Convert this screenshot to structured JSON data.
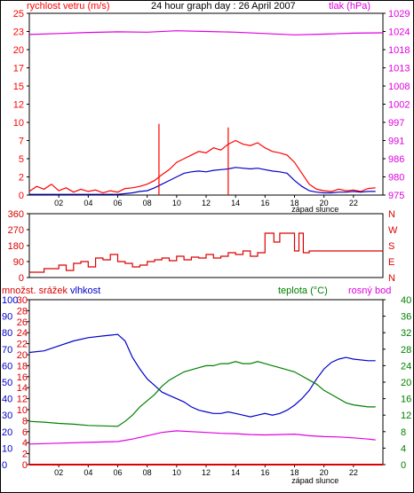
{
  "colors": {
    "wind": "#ff0000",
    "gust": "#ff0000",
    "wind_avg": "#0000c8",
    "pressure": "#e000e0",
    "direction": "#dd0000",
    "humidity": "#0000cc",
    "temperature": "#008000",
    "dewpoint": "#e000e0",
    "rain": "#dd0000",
    "axis": "#000000"
  },
  "chart_data": [
    {
      "type": "line",
      "title": "24 hour graph day : 26 April 2007",
      "ylabel_left": "rychlost vetru (m/s)",
      "ylabel_right": "tlak (hPa)",
      "sunset_label": "západ slunce",
      "x_ticks": [
        "02",
        "04",
        "06",
        "08",
        "10",
        "12",
        "14",
        "16",
        "18",
        "20",
        "22"
      ],
      "x_range": [
        0,
        24
      ],
      "yticks_left": [
        "0",
        "2",
        "5",
        "7",
        "10",
        "12",
        "15",
        "17",
        "20",
        "23",
        "25"
      ],
      "ylim_left": [
        0,
        25
      ],
      "yticks_right": [
        "975",
        "980",
        "986",
        "991",
        "997",
        "1002",
        "1008",
        "1013",
        "1018",
        "1024",
        "1029"
      ],
      "ylim_right": [
        975,
        1029
      ],
      "series": [
        {
          "name": "wind_gust",
          "color": "wind",
          "x": [
            0,
            0.5,
            1,
            1.5,
            2,
            2.5,
            3,
            3.5,
            4,
            4.5,
            5,
            5.5,
            6,
            6.5,
            7,
            7.5,
            8,
            8.5,
            9,
            9.5,
            10,
            10.5,
            11,
            11.5,
            12,
            12.5,
            13,
            13.5,
            14,
            14.5,
            15,
            15.5,
            16,
            16.5,
            17,
            17.5,
            18,
            18.5,
            19,
            19.5,
            20,
            20.5,
            21,
            21.5,
            22,
            22.5,
            23,
            23.5
          ],
          "y": [
            0.5,
            1.2,
            0.8,
            1.5,
            0.6,
            1.0,
            0.4,
            0.8,
            0.5,
            0.7,
            0.3,
            0.6,
            0.4,
            0.9,
            1.0,
            1.2,
            1.5,
            2.0,
            2.8,
            3.5,
            4.5,
            5.0,
            5.5,
            6.0,
            5.8,
            6.5,
            6.2,
            7.0,
            7.5,
            7.0,
            6.8,
            7.2,
            6.5,
            6.0,
            5.8,
            5.5,
            4.5,
            3.0,
            1.5,
            0.8,
            0.6,
            0.5,
            0.8,
            0.6,
            0.7,
            0.5,
            0.9,
            1.0
          ]
        },
        {
          "name": "wind_avg",
          "color": "wind_avg",
          "x": [
            0,
            0.5,
            1,
            1.5,
            2,
            2.5,
            3,
            3.5,
            4,
            4.5,
            5,
            5.5,
            6,
            6.5,
            7,
            7.5,
            8,
            8.5,
            9,
            9.5,
            10,
            10.5,
            11,
            11.5,
            12,
            12.5,
            13,
            13.5,
            14,
            14.5,
            15,
            15.5,
            16,
            16.5,
            17,
            17.5,
            18,
            18.5,
            19,
            19.5,
            20,
            20.5,
            21,
            21.5,
            22,
            22.5,
            23,
            23.5
          ],
          "y": [
            0.1,
            0.1,
            0.1,
            0.1,
            0.1,
            0.1,
            0.1,
            0.1,
            0.1,
            0.1,
            0.1,
            0.1,
            0.1,
            0.2,
            0.3,
            0.5,
            0.6,
            1.0,
            1.5,
            2.0,
            2.5,
            3.0,
            3.2,
            3.3,
            3.2,
            3.4,
            3.5,
            3.6,
            3.8,
            3.7,
            3.6,
            3.7,
            3.5,
            3.3,
            3.2,
            3.0,
            2.0,
            1.2,
            0.6,
            0.4,
            0.3,
            0.3,
            0.4,
            0.4,
            0.5,
            0.4,
            0.5,
            0.5
          ]
        },
        {
          "name": "pressure",
          "color": "pressure",
          "axis": "right",
          "x": [
            0,
            2,
            4,
            6,
            8,
            10,
            12,
            14,
            16,
            18,
            20,
            22,
            24
          ],
          "y": [
            1022.7,
            1023.0,
            1023.3,
            1023.5,
            1023.4,
            1023.8,
            1023.6,
            1023.4,
            1023.0,
            1022.6,
            1022.8,
            1023.1,
            1023.2
          ]
        }
      ],
      "spikes": [
        {
          "x": 8.8,
          "y": 9.8
        },
        {
          "x": 13.5,
          "y": 9.3
        }
      ]
    },
    {
      "type": "step",
      "ylabel_left_ticks": [
        "360",
        "270",
        "180",
        "90",
        "0"
      ],
      "ylim": [
        0,
        360
      ],
      "compass_right": [
        "N",
        "W",
        "S",
        "E",
        "N"
      ],
      "x_range": [
        0,
        24
      ],
      "series": [
        {
          "name": "direction",
          "color": "direction",
          "x": [
            0,
            1,
            2,
            2.5,
            3,
            3.5,
            4,
            4.5,
            5,
            5.5,
            6,
            6.5,
            7,
            7.5,
            8,
            8.5,
            9,
            9.5,
            10,
            10.5,
            11,
            11.5,
            12,
            12.5,
            13,
            13.5,
            14,
            14.5,
            15,
            15.5,
            16,
            16.3,
            16.6,
            17,
            17.5,
            18,
            18.3,
            18.6,
            19,
            24
          ],
          "y": [
            30,
            50,
            70,
            40,
            80,
            90,
            60,
            110,
            100,
            130,
            90,
            80,
            60,
            70,
            90,
            100,
            110,
            95,
            120,
            100,
            115,
            110,
            130,
            110,
            120,
            140,
            130,
            150,
            120,
            140,
            250,
            250,
            200,
            250,
            250,
            150,
            250,
            140,
            150,
            150
          ]
        }
      ]
    },
    {
      "type": "line",
      "ylabel_left": "množst. srážek",
      "ylabel_left2": "vlhkost",
      "ylabel_right": "teplota (°C)",
      "ylabel_right2": "rosný bod",
      "sunset_label": "západ slunce",
      "x_ticks": [
        "02",
        "04",
        "06",
        "08",
        "10",
        "12",
        "14",
        "16",
        "18",
        "20",
        "22"
      ],
      "x_range": [
        0,
        24
      ],
      "yticks_rain": [
        "0",
        "2",
        "4",
        "6",
        "8",
        "10",
        "12",
        "14",
        "16",
        "18",
        "20",
        "22",
        "24",
        "26",
        "28",
        "30"
      ],
      "ylim_rain": [
        0,
        30
      ],
      "yticks_humidity": [
        "0",
        "10",
        "20",
        "30",
        "40",
        "50",
        "60",
        "70",
        "80",
        "90",
        "100"
      ],
      "ylim_humidity": [
        0,
        100
      ],
      "yticks_temp": [
        "0",
        "4",
        "8",
        "12",
        "16",
        "20",
        "24",
        "28",
        "32",
        "36",
        "40"
      ],
      "ylim_temp": [
        0,
        40
      ],
      "series": [
        {
          "name": "humidity",
          "color": "humidity",
          "axis": "humidity",
          "x": [
            0,
            1,
            2,
            3,
            4,
            5,
            6,
            6.5,
            7,
            7.5,
            8,
            8.5,
            9,
            9.5,
            10,
            10.5,
            11,
            11.5,
            12,
            12.5,
            13,
            13.5,
            14,
            14.5,
            15,
            15.5,
            16,
            16.5,
            17,
            17.5,
            18,
            18.5,
            19,
            19.5,
            20,
            20.5,
            21,
            21.5,
            22,
            23,
            23.5
          ],
          "y": [
            68,
            69,
            72,
            75,
            77,
            78,
            79,
            75,
            65,
            58,
            52,
            48,
            44,
            42,
            40,
            38,
            35,
            33,
            32,
            31,
            31,
            32,
            31,
            30,
            29,
            30,
            31,
            30,
            31,
            33,
            36,
            40,
            45,
            52,
            58,
            62,
            64,
            65,
            64,
            63,
            63
          ]
        },
        {
          "name": "temperature",
          "color": "temperature",
          "axis": "temp",
          "x": [
            0,
            1,
            2,
            3,
            4,
            5,
            6,
            6.5,
            7,
            7.5,
            8,
            8.5,
            9,
            9.5,
            10,
            10.5,
            11,
            11.5,
            12,
            12.5,
            13,
            13.5,
            14,
            14.5,
            15,
            15.5,
            16,
            16.5,
            17,
            17.5,
            18,
            18.5,
            19,
            19.5,
            20,
            20.5,
            21,
            21.5,
            22,
            23,
            23.5
          ],
          "y": [
            10.5,
            10.3,
            10.0,
            9.8,
            9.5,
            9.4,
            9.3,
            10.5,
            12.0,
            14.0,
            15.5,
            17.0,
            19.0,
            20.5,
            21.5,
            22.5,
            23.0,
            23.5,
            24.0,
            24.0,
            24.5,
            24.5,
            25.0,
            24.5,
            24.5,
            25.0,
            24.5,
            24.0,
            23.5,
            23.0,
            22.5,
            21.5,
            20.5,
            19.5,
            18.0,
            17.0,
            16.0,
            15.0,
            14.5,
            14.0,
            14.0
          ]
        },
        {
          "name": "dewpoint",
          "color": "dewpoint",
          "axis": "temp",
          "x": [
            0,
            2,
            4,
            6,
            7,
            8,
            9,
            10,
            11,
            12,
            13,
            14,
            15,
            16,
            17,
            18,
            19,
            20,
            21,
            22,
            23,
            23.5
          ],
          "y": [
            5.0,
            5.2,
            5.4,
            5.6,
            6.2,
            7.0,
            7.8,
            8.2,
            8.0,
            7.8,
            7.6,
            7.5,
            7.3,
            7.2,
            7.3,
            7.4,
            7.0,
            6.8,
            6.7,
            6.5,
            6.2,
            6.0
          ]
        },
        {
          "name": "rain",
          "color": "rain",
          "axis": "rain",
          "x": [
            0,
            24
          ],
          "y": [
            0,
            0
          ]
        }
      ]
    }
  ]
}
